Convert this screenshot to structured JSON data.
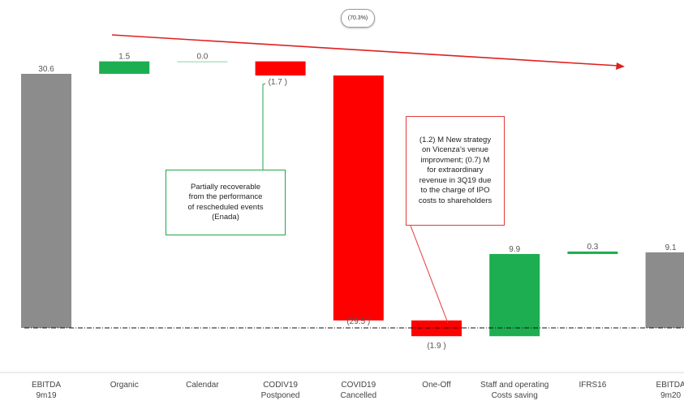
{
  "chart_data": {
    "type": "waterfall",
    "title": "",
    "categories": [
      "EBITDA\n9m19",
      "Organic",
      "Calendar",
      "CODIV19\nPostponed",
      "COVID19\nCancelled",
      "One-Off",
      "Staff and operating\nCosts saving",
      "IFRS16",
      "EBITDA\n9m20"
    ],
    "values": [
      30.6,
      1.5,
      0.0,
      -1.7,
      -29.5,
      -1.9,
      9.9,
      0.3,
      9.1
    ],
    "value_labels": [
      "30.6",
      "1.5",
      "0.0",
      "(1.7 )",
      "(29.5 )",
      "(1.9 )",
      "9.9",
      "0.3",
      "9.1"
    ],
    "bar_kinds": [
      "total",
      "delta",
      "delta",
      "delta",
      "delta",
      "delta",
      "delta",
      "delta",
      "total"
    ],
    "colors": {
      "total": "#8c8c8c",
      "increase": "#1cae50",
      "decrease": "#ff0000",
      "zero": "#8fd3a8",
      "arrow": "#e02020"
    },
    "ylim": [
      -2.5,
      33.2
    ],
    "trend_label": "(70.3%)",
    "annotations": [
      {
        "id": "green",
        "text": "Partially recoverable\nfrom the performance\nof rescheduled events\n(Enada)",
        "color": "#22a64a"
      },
      {
        "id": "red",
        "text": "(1.2) M New strategy\non Vicenza’s venue\nimprovment; (0.7) M\nfor extraordinary\nrevenue in 3Q19 due\nto the charge of IPO\ncosts to shareholders",
        "color": "#e43a3a"
      }
    ]
  }
}
